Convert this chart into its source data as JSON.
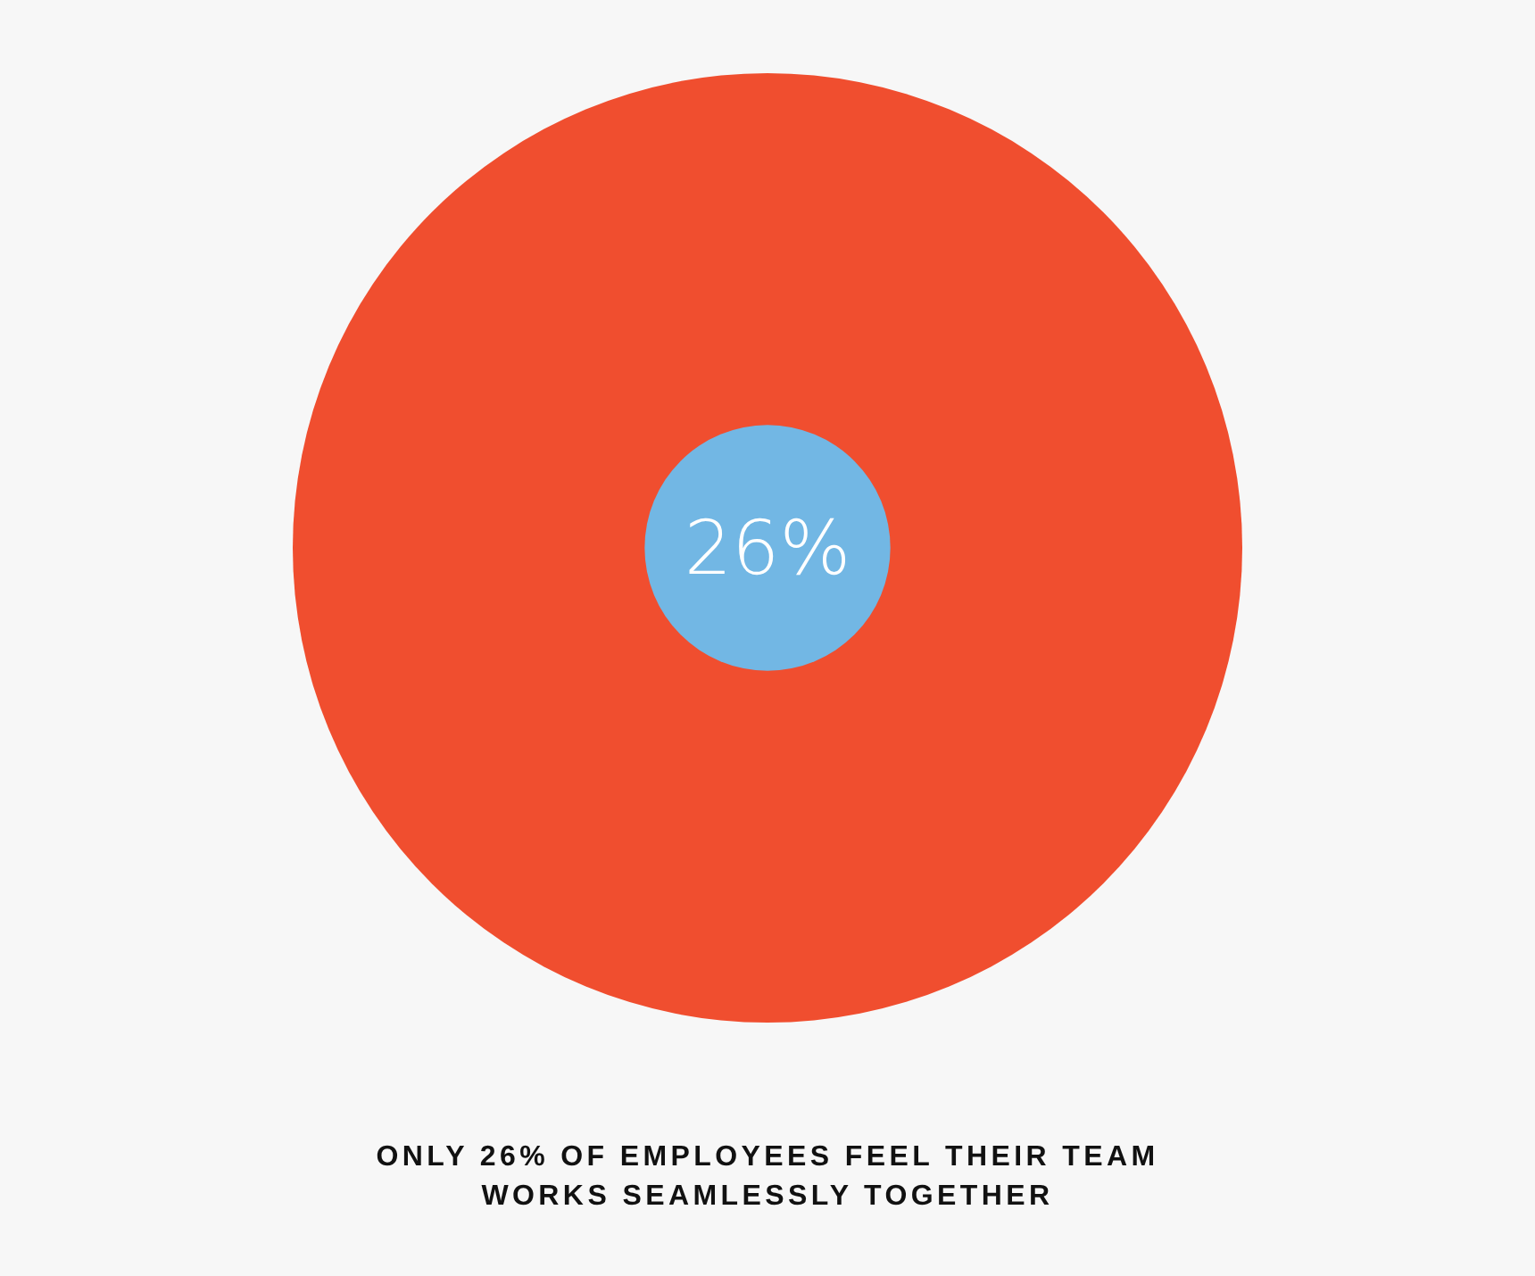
{
  "chart_data": {
    "type": "other",
    "values": [
      26
    ],
    "value_labels": [
      "26%"
    ],
    "colors": [
      "#72b7e4"
    ],
    "annotations": [
      "ONLY 26% OF EMPLOYEES FEEL THEIR TEAM WORKS SEAMLESSLY TOGETHER"
    ]
  }
}
